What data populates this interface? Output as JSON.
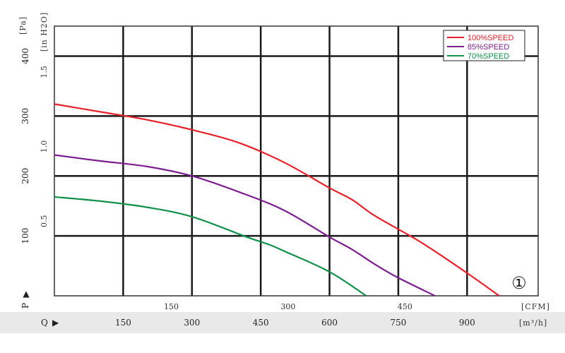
{
  "chart_data": {
    "type": "line",
    "title": "",
    "left_axis": {
      "label_unit": "[Pa]",
      "symbol": "P",
      "ticks": [
        100,
        200,
        300,
        400
      ],
      "range": [
        0,
        450
      ]
    },
    "left_axis_secondary": {
      "label_unit": "[in H2O]",
      "ticks": [
        "0.5",
        "1.0",
        "1.5"
      ]
    },
    "bottom_axis": {
      "label_unit": "[m³/h]",
      "symbol": "Q",
      "ticks": [
        150,
        300,
        450,
        600,
        750,
        900
      ],
      "range": [
        0,
        1055
      ]
    },
    "bottom_axis_secondary": {
      "label_unit": "[CFM]",
      "ticks": [
        "150",
        "300",
        "450"
      ]
    },
    "series": [
      {
        "name": "100%SPEED",
        "color": "#e8212a",
        "x": [
          0,
          100,
          200,
          300,
          400,
          500,
          600,
          650,
          700,
          800,
          900,
          970
        ],
        "y": [
          320,
          307,
          294,
          277,
          256,
          223,
          180,
          160,
          133,
          89,
          38,
          0
        ]
      },
      {
        "name": "85%SPEED",
        "color": "#7b1e8f",
        "x": [
          0,
          100,
          200,
          300,
          400,
          500,
          600,
          650,
          700,
          750,
          830
        ],
        "y": [
          235,
          225,
          216,
          200,
          174,
          143,
          98,
          77,
          52,
          30,
          0
        ]
      },
      {
        "name": "70%SPEED",
        "color": "#10904a",
        "x": [
          0,
          100,
          200,
          300,
          420,
          470,
          500,
          600,
          680
        ],
        "y": [
          165,
          158,
          148,
          132,
          98,
          85,
          75,
          40,
          0
        ]
      }
    ],
    "legend": {
      "placement": "top-right"
    },
    "grid": true,
    "annotation": "①"
  }
}
